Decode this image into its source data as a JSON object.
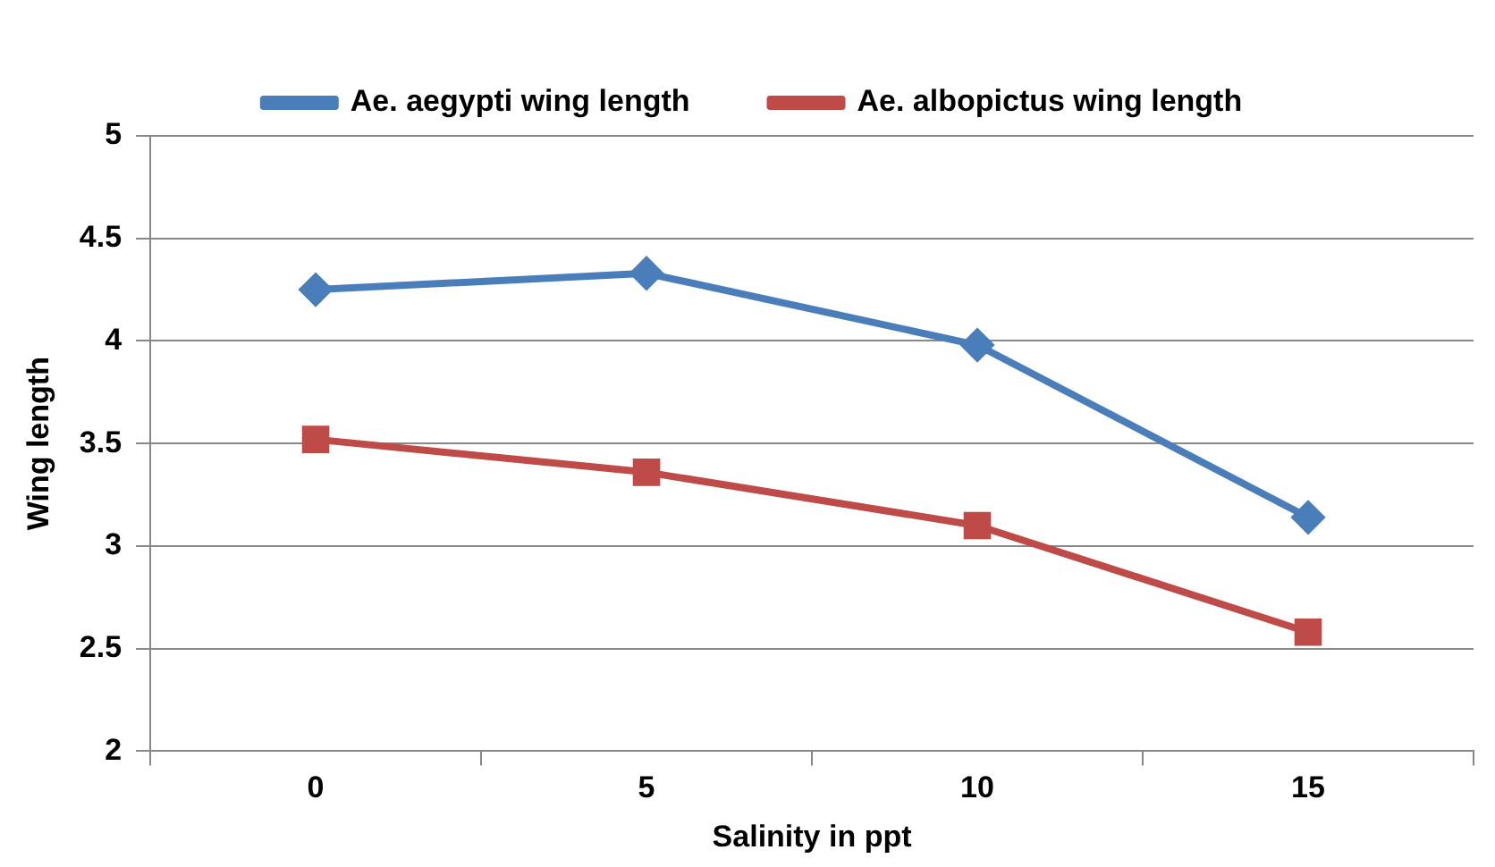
{
  "chart_data": {
    "type": "line",
    "xlabel": "Salinity in ppt",
    "ylabel": "Wing length",
    "categories": [
      "0",
      "5",
      "10",
      "15"
    ],
    "series": [
      {
        "name": "Ae. aegypti wing length",
        "color": "#4a7ebb",
        "marker": "diamond",
        "values": [
          4.25,
          4.33,
          3.98,
          3.14
        ]
      },
      {
        "name": "Ae. albopictus wing length",
        "color": "#be4b48",
        "marker": "square",
        "values": [
          3.52,
          3.36,
          3.1,
          2.58
        ]
      }
    ],
    "ylim": [
      2,
      5
    ],
    "yticks": [
      2,
      2.5,
      3,
      3.5,
      4,
      4.5,
      5
    ],
    "grid": "y",
    "legend": "top",
    "line_style": "solid"
  }
}
